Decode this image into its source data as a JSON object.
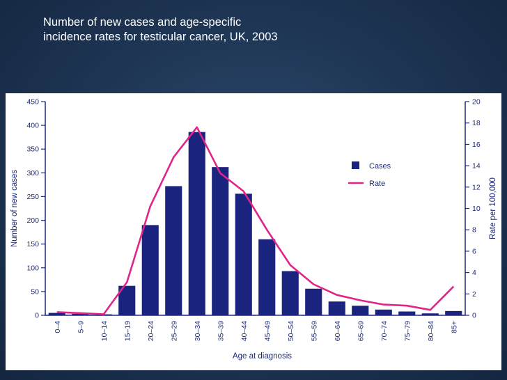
{
  "slide": {
    "title_line1": "Number of new cases and age-specific",
    "title_line2": "incidence rates for testicular cancer, UK, 2003"
  },
  "colors": {
    "background": "#1d3452",
    "bar": "#1a237e",
    "line": "#e0248a",
    "axis": "#1b2a7a"
  },
  "chart_data": {
    "type": "bar",
    "title": "Number of new cases and age-specific incidence rates for testicular cancer, UK, 2003",
    "xlabel": "Age at diagnosis",
    "ylabel": "Number of new cases",
    "y2label": "Rate per 100,000",
    "ylim": [
      0,
      450
    ],
    "y2lim": [
      0,
      20
    ],
    "yticks": [
      0,
      50,
      100,
      150,
      200,
      250,
      300,
      350,
      400,
      450
    ],
    "y2ticks": [
      0,
      2,
      4,
      6,
      8,
      10,
      12,
      14,
      16,
      18,
      20
    ],
    "legend_position": "top-right",
    "categories": [
      "0–4",
      "5–9",
      "10–14",
      "15–19",
      "20–24",
      "25–29",
      "30–34",
      "35–39",
      "40–44",
      "45–49",
      "50–54",
      "55–59",
      "60–64",
      "65–69",
      "70–74",
      "75–79",
      "80–84",
      "85+"
    ],
    "series": [
      {
        "name": "Cases",
        "type": "bar",
        "axis": "left",
        "values": [
          5,
          3,
          2,
          62,
          190,
          272,
          386,
          312,
          256,
          160,
          93,
          56,
          29,
          20,
          12,
          8,
          4,
          9
        ]
      },
      {
        "name": "Rate",
        "type": "line",
        "axis": "right",
        "values": [
          0.3,
          0.2,
          0.1,
          3.1,
          10.2,
          14.8,
          17.6,
          13.3,
          11.6,
          8.0,
          4.7,
          2.9,
          1.9,
          1.4,
          1.0,
          0.9,
          0.5,
          2.7
        ]
      }
    ]
  }
}
